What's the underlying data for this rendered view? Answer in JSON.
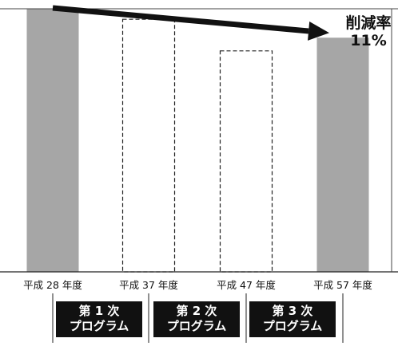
{
  "chart_data": {
    "type": "bar",
    "categories": [
      "平成 28 年度",
      "平成 37 年度",
      "平成 47 年度",
      "平成 57 年度"
    ],
    "values": [
      100,
      96,
      84,
      89
    ],
    "series_styles": [
      "solid",
      "dashed",
      "dashed",
      "solid"
    ],
    "ylim": [
      0,
      100
    ],
    "title": "",
    "xlabel": "",
    "ylabel": "",
    "grid": false,
    "annotation": {
      "line1": "削減率",
      "line2": "11%"
    },
    "programs": [
      {
        "line1": "第 1 次",
        "line2": "プログラム"
      },
      {
        "line1": "第 2 次",
        "line2": "プログラム"
      },
      {
        "line1": "第 3 次",
        "line2": "プログラム"
      }
    ],
    "colors": {
      "bar": "#a6a6a6",
      "arrow": "#111111",
      "axis": "#222222",
      "program_bg": "#111111"
    }
  }
}
